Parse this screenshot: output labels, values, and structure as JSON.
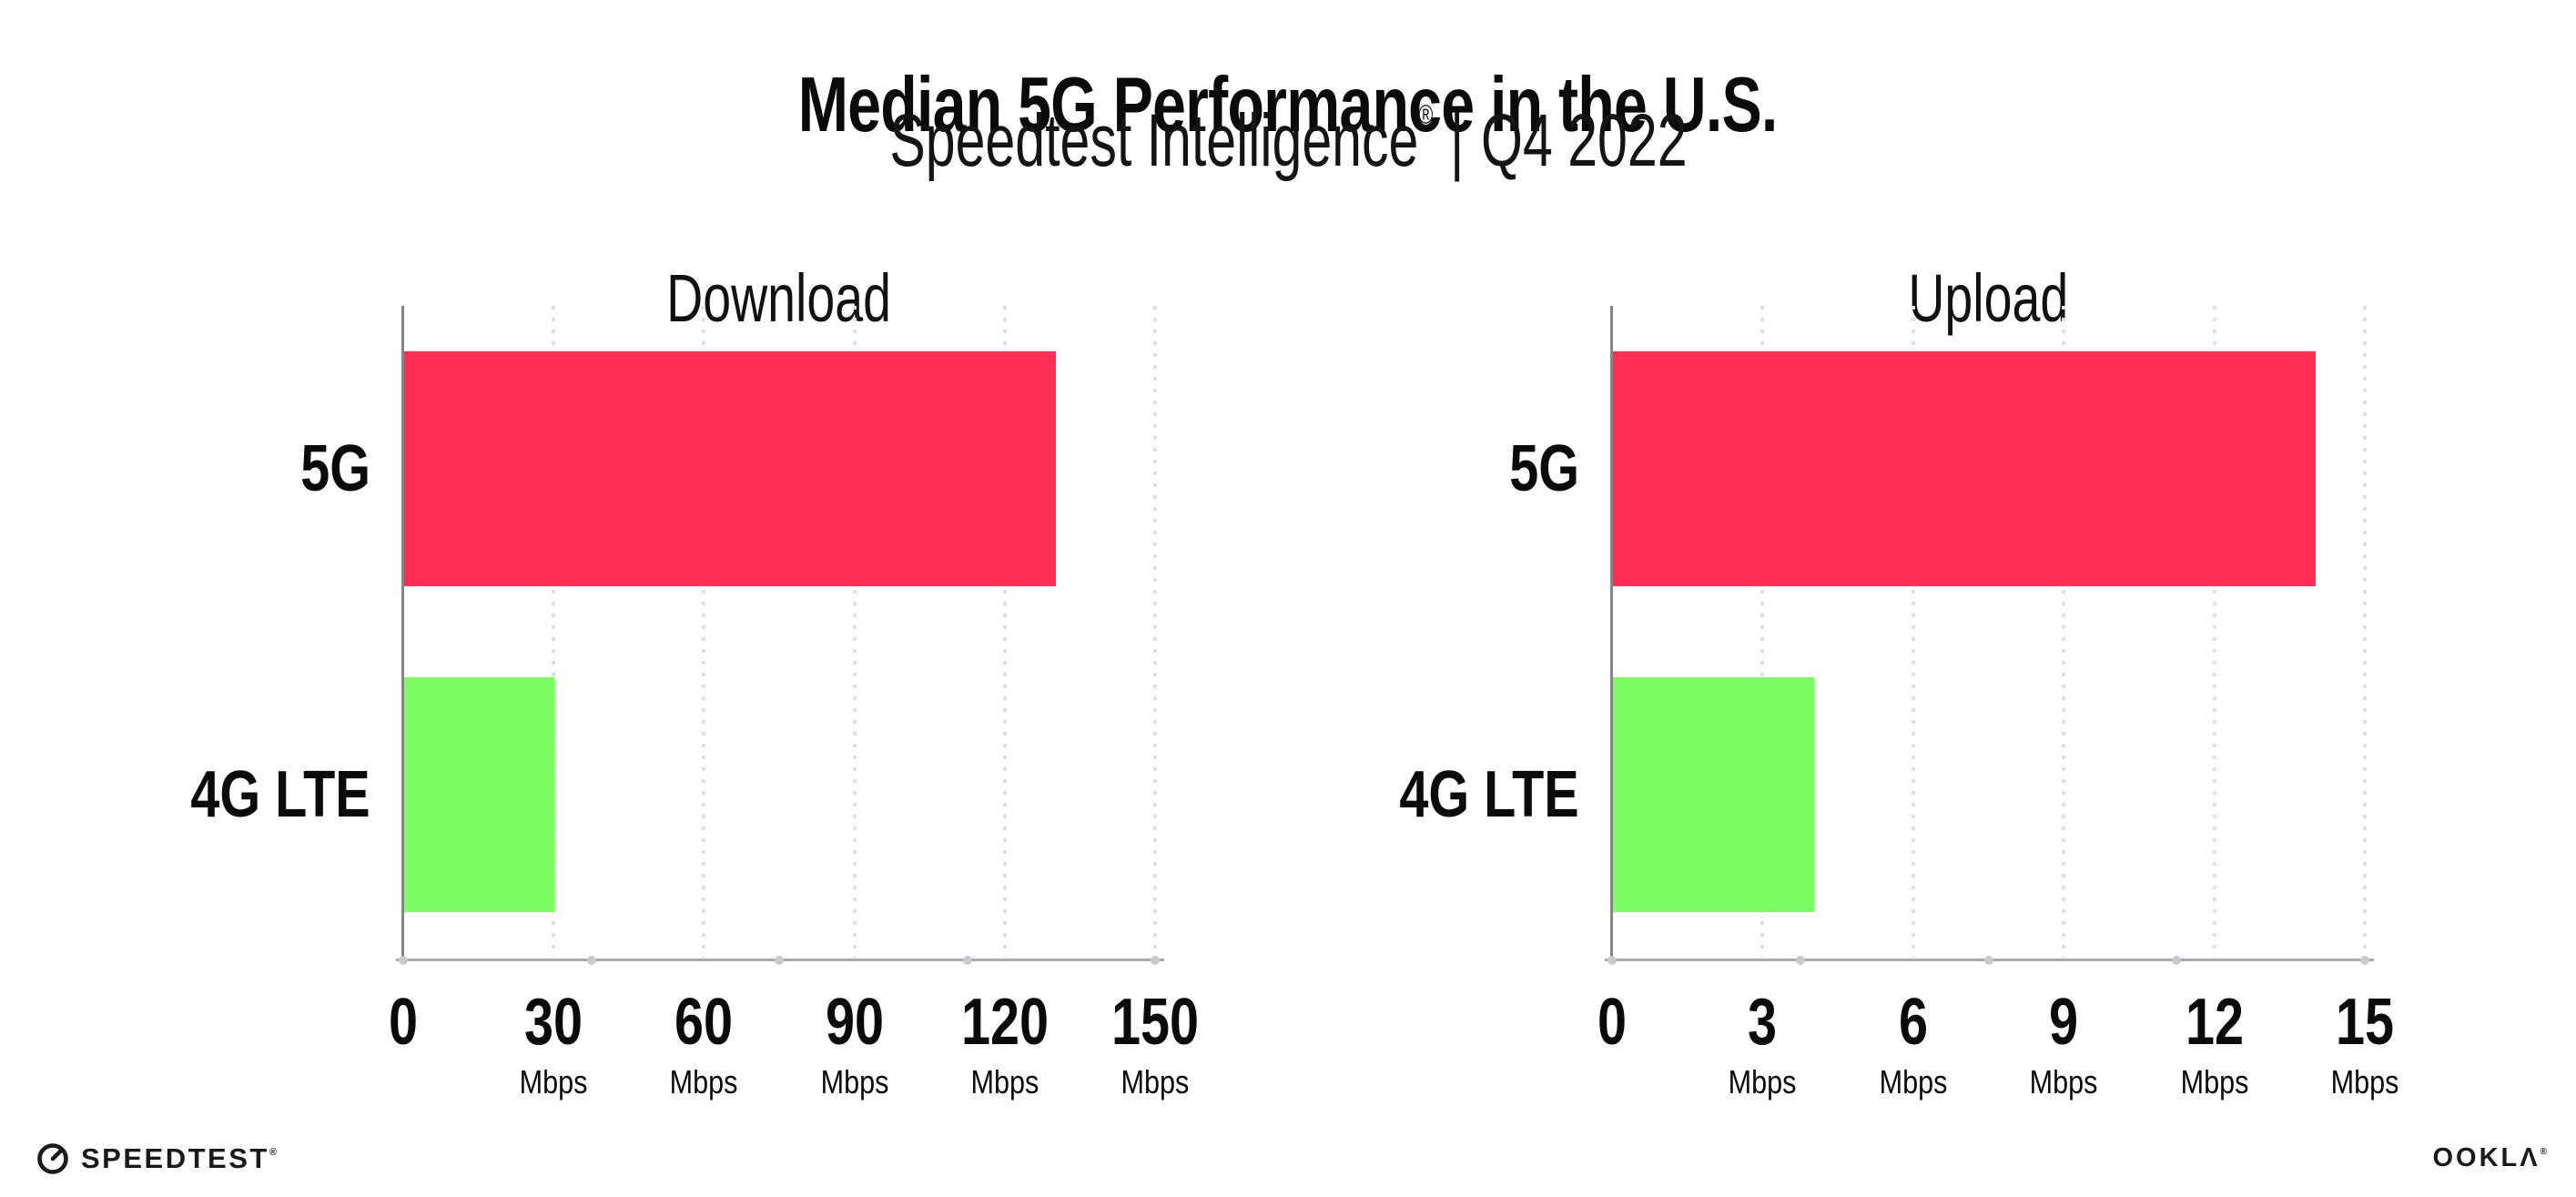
{
  "header": {
    "title": "Median 5G Performance in the U.S.",
    "subtitle_brand": "Speedtest Intelligence",
    "subtitle_reg": "®",
    "subtitle_sep": "|",
    "subtitle_period": "Q4 2022"
  },
  "footer": {
    "speedtest_wordmark": "SPEEDTEST",
    "speedtest_reg": "®",
    "ookla_wordmark": "OOKLΛ",
    "ookla_reg": "®"
  },
  "colors": {
    "bar_5g": "#FF2E55",
    "bar_4g_lte": "#7DFB63",
    "gridline_dots": "#E0E0EA",
    "x_axis": "#A9A9B0",
    "y_axis": "#84848C",
    "text": "#0A0A0A"
  },
  "chart_data": [
    {
      "type": "bar",
      "orientation": "horizontal",
      "title": "Download",
      "categories": [
        "5G",
        "4G LTE"
      ],
      "values": [
        130,
        30
      ],
      "series_colors": [
        "#FF2E55",
        "#7DFB63"
      ],
      "unit": "Mbps",
      "xlim": [
        0,
        150
      ],
      "xticks": [
        0,
        30,
        60,
        90,
        120,
        150
      ],
      "ticks": [
        {
          "label": "0",
          "unit": ""
        },
        {
          "label": "30",
          "unit": "Mbps"
        },
        {
          "label": "60",
          "unit": "Mbps"
        },
        {
          "label": "90",
          "unit": "Mbps"
        },
        {
          "label": "120",
          "unit": "Mbps"
        },
        {
          "label": "150",
          "unit": "Mbps"
        }
      ],
      "grid": "vertical-dotted",
      "legend": "none"
    },
    {
      "type": "bar",
      "orientation": "horizontal",
      "title": "Upload",
      "categories": [
        "5G",
        "4G LTE"
      ],
      "values": [
        14,
        4
      ],
      "series_colors": [
        "#FF2E55",
        "#7DFB63"
      ],
      "unit": "Mbps",
      "xlim": [
        0,
        15
      ],
      "xticks": [
        0,
        3,
        6,
        9,
        12,
        15
      ],
      "ticks": [
        {
          "label": "0",
          "unit": ""
        },
        {
          "label": "3",
          "unit": "Mbps"
        },
        {
          "label": "6",
          "unit": "Mbps"
        },
        {
          "label": "9",
          "unit": "Mbps"
        },
        {
          "label": "12",
          "unit": "Mbps"
        },
        {
          "label": "15",
          "unit": "Mbps"
        }
      ],
      "grid": "vertical-dotted",
      "legend": "none"
    }
  ]
}
